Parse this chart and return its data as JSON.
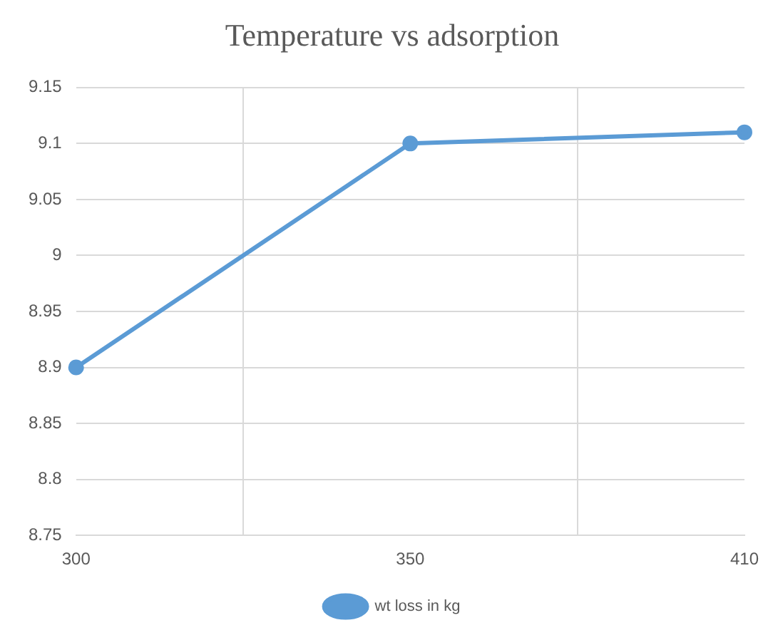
{
  "chart_data": {
    "type": "line",
    "title": "Temperature vs adsorption",
    "categories": [
      "300",
      "350",
      "410"
    ],
    "series": [
      {
        "name": "wt loss in kg",
        "color": "#5b9bd5",
        "values": [
          8.9,
          9.1,
          9.11
        ]
      }
    ],
    "ylim": [
      8.75,
      9.15
    ],
    "yticks": [
      8.75,
      8.8,
      8.85,
      8.9,
      8.95,
      9,
      9.05,
      9.1,
      9.15
    ],
    "grid": true,
    "legend": "bottom",
    "marker": "circle",
    "line_style": "solid"
  }
}
